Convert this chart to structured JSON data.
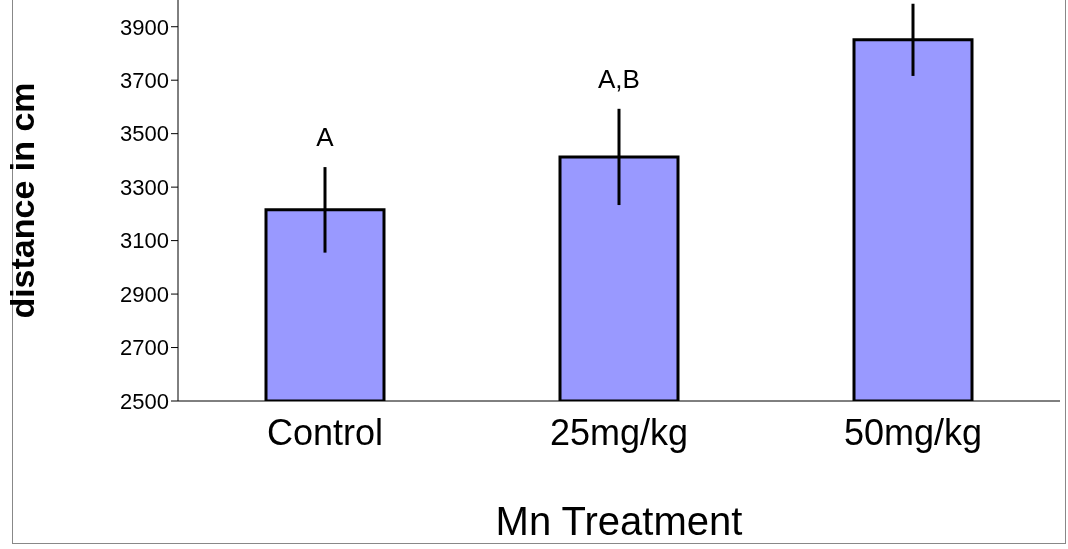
{
  "chart_data": {
    "type": "bar",
    "xlabel": "Mn Treatment",
    "ylabel": "distance in cm",
    "categories": [
      "Control",
      "25mg/kg",
      "50mg/kg"
    ],
    "values": [
      3215,
      3413,
      3851
    ],
    "errors": [
      160,
      180,
      135
    ],
    "color": "#9999ff",
    "ylim": [
      2500,
      4000
    ],
    "yticks": [
      2500,
      2700,
      2900,
      3100,
      3300,
      3500,
      3700,
      3900
    ],
    "grid": false,
    "legend": false,
    "annotations": [
      {
        "text": "A",
        "x": "Control",
        "y": 3380
      },
      {
        "text": "A,B",
        "x": "25mg/kg",
        "y": 3597
      }
    ]
  }
}
